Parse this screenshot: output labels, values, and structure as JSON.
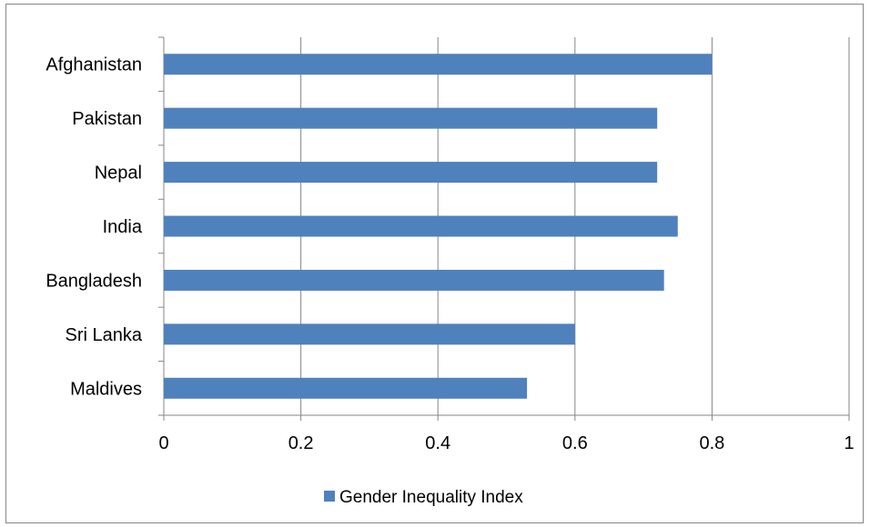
{
  "chart_data": {
    "type": "bar",
    "orientation": "horizontal",
    "categories": [
      "Afghanistan",
      "Pakistan",
      "Nepal",
      "India",
      "Bangladesh",
      "Sri Lanka",
      "Maldives"
    ],
    "series": [
      {
        "name": "Gender Inequality Index",
        "values": [
          0.8,
          0.72,
          0.72,
          0.75,
          0.73,
          0.6,
          0.53
        ],
        "color": "#4f81bd"
      }
    ],
    "xlim": [
      0,
      1
    ],
    "xticks": [
      "0",
      "0.2",
      "0.4",
      "0.6",
      "0.8",
      "1"
    ],
    "grid": "vertical",
    "legend": "bottom",
    "title": "",
    "xlabel": "",
    "ylabel": ""
  }
}
